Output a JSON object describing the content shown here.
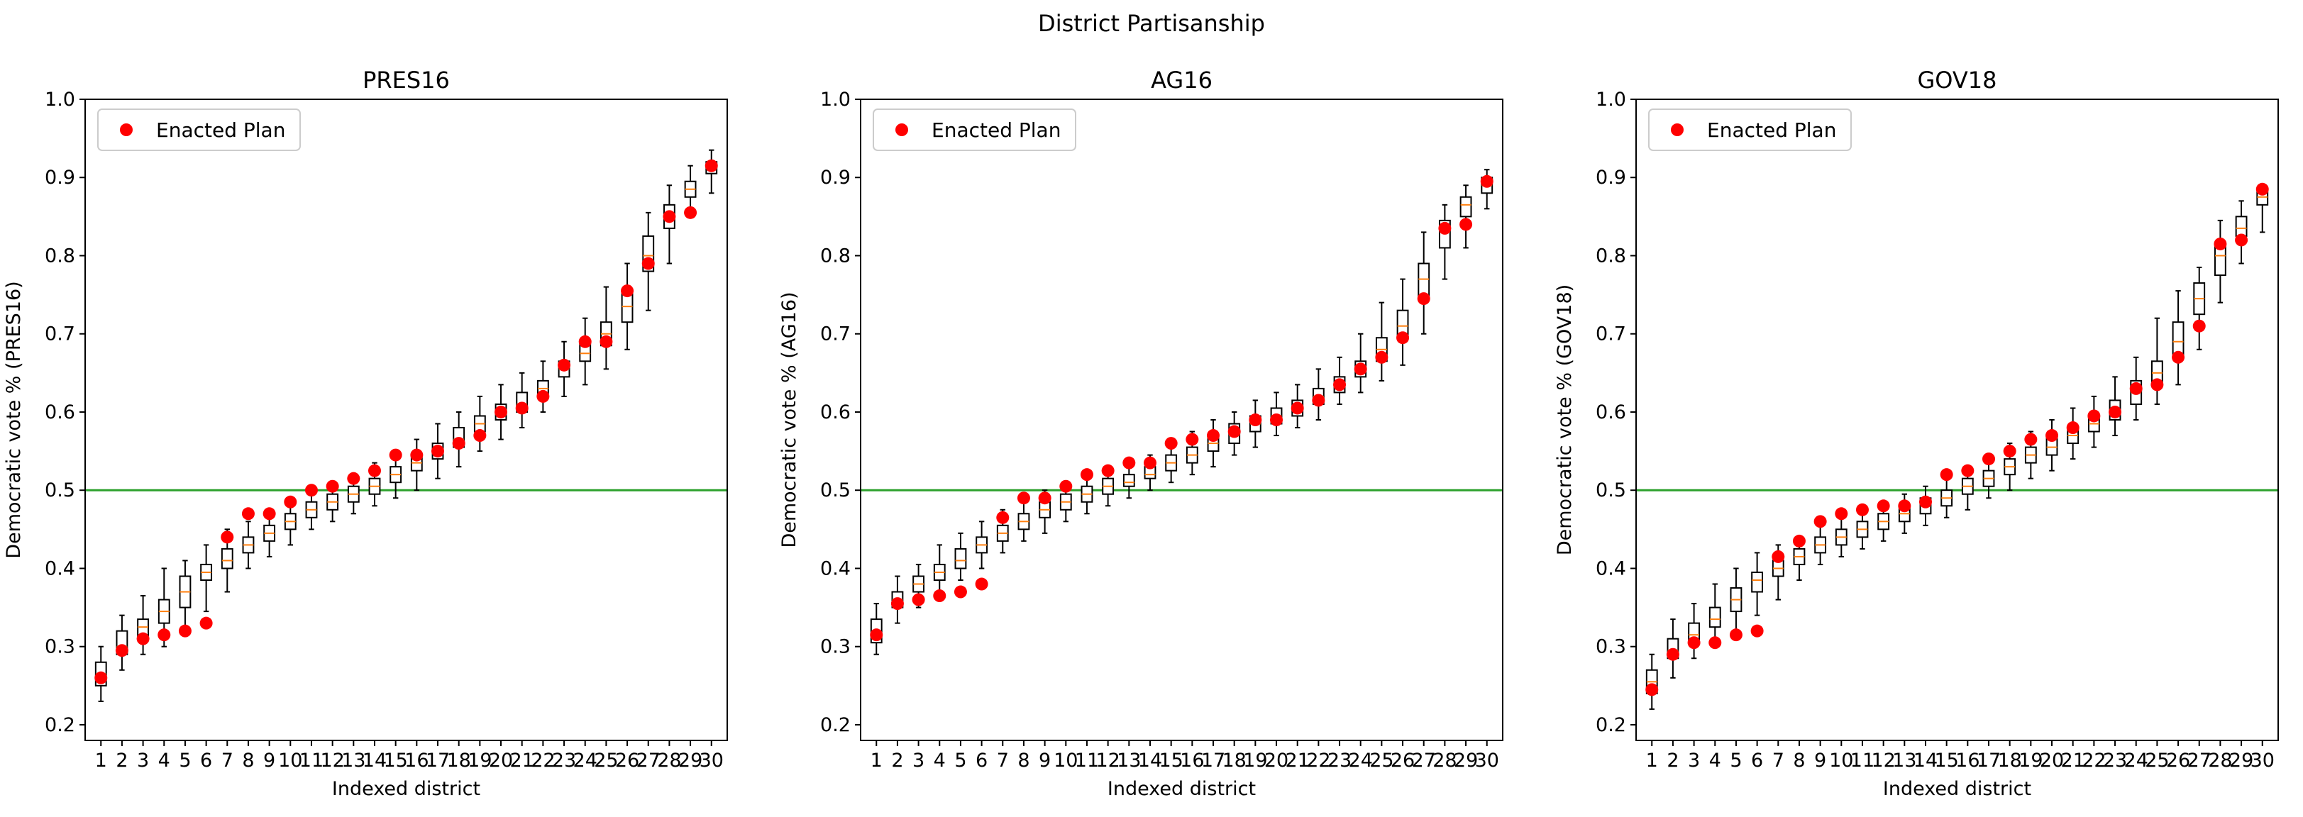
{
  "figure_title": "District Partisanship",
  "chart_data": [
    {
      "type": "box",
      "title": "PRES16",
      "xlabel": "Indexed district",
      "ylabel": "Democratic vote % (PRES16)",
      "ylim": [
        0.18,
        1.0
      ],
      "yticks": [
        "0.2",
        "0.3",
        "0.4",
        "0.5",
        "0.6",
        "0.7",
        "0.8",
        "0.9",
        "1.0"
      ],
      "categories": [
        "1",
        "2",
        "3",
        "4",
        "5",
        "6",
        "7",
        "8",
        "9",
        "10",
        "11",
        "12",
        "13",
        "14",
        "15",
        "16",
        "17",
        "18",
        "19",
        "20",
        "21",
        "22",
        "23",
        "24",
        "25",
        "26",
        "27",
        "28",
        "29",
        "30"
      ],
      "reference_line": 0.5,
      "legend": {
        "label": "Enacted Plan",
        "position": "upper-left"
      },
      "boxes": [
        {
          "min": 0.23,
          "q1": 0.25,
          "median": 0.265,
          "q3": 0.28,
          "max": 0.3
        },
        {
          "min": 0.27,
          "q1": 0.29,
          "median": 0.3,
          "q3": 0.32,
          "max": 0.34
        },
        {
          "min": 0.29,
          "q1": 0.31,
          "median": 0.325,
          "q3": 0.335,
          "max": 0.365
        },
        {
          "min": 0.3,
          "q1": 0.33,
          "median": 0.345,
          "q3": 0.36,
          "max": 0.4
        },
        {
          "min": 0.32,
          "q1": 0.35,
          "median": 0.37,
          "q3": 0.39,
          "max": 0.41
        },
        {
          "min": 0.345,
          "q1": 0.385,
          "median": 0.395,
          "q3": 0.405,
          "max": 0.43
        },
        {
          "min": 0.37,
          "q1": 0.4,
          "median": 0.41,
          "q3": 0.425,
          "max": 0.45
        },
        {
          "min": 0.4,
          "q1": 0.42,
          "median": 0.43,
          "q3": 0.44,
          "max": 0.46
        },
        {
          "min": 0.415,
          "q1": 0.435,
          "median": 0.445,
          "q3": 0.455,
          "max": 0.475
        },
        {
          "min": 0.43,
          "q1": 0.45,
          "median": 0.46,
          "q3": 0.47,
          "max": 0.49
        },
        {
          "min": 0.45,
          "q1": 0.465,
          "median": 0.475,
          "q3": 0.485,
          "max": 0.5
        },
        {
          "min": 0.46,
          "q1": 0.475,
          "median": 0.485,
          "q3": 0.495,
          "max": 0.51
        },
        {
          "min": 0.47,
          "q1": 0.485,
          "median": 0.495,
          "q3": 0.505,
          "max": 0.52
        },
        {
          "min": 0.48,
          "q1": 0.495,
          "median": 0.505,
          "q3": 0.515,
          "max": 0.535
        },
        {
          "min": 0.49,
          "q1": 0.51,
          "median": 0.52,
          "q3": 0.53,
          "max": 0.55
        },
        {
          "min": 0.5,
          "q1": 0.525,
          "median": 0.535,
          "q3": 0.545,
          "max": 0.565
        },
        {
          "min": 0.515,
          "q1": 0.54,
          "median": 0.55,
          "q3": 0.56,
          "max": 0.585
        },
        {
          "min": 0.53,
          "q1": 0.555,
          "median": 0.565,
          "q3": 0.58,
          "max": 0.6
        },
        {
          "min": 0.55,
          "q1": 0.575,
          "median": 0.585,
          "q3": 0.595,
          "max": 0.62
        },
        {
          "min": 0.565,
          "q1": 0.59,
          "median": 0.6,
          "q3": 0.61,
          "max": 0.635
        },
        {
          "min": 0.58,
          "q1": 0.6,
          "median": 0.61,
          "q3": 0.625,
          "max": 0.65
        },
        {
          "min": 0.6,
          "q1": 0.62,
          "median": 0.63,
          "q3": 0.64,
          "max": 0.665
        },
        {
          "min": 0.62,
          "q1": 0.645,
          "median": 0.655,
          "q3": 0.665,
          "max": 0.69
        },
        {
          "min": 0.635,
          "q1": 0.665,
          "median": 0.675,
          "q3": 0.69,
          "max": 0.72
        },
        {
          "min": 0.655,
          "q1": 0.685,
          "median": 0.7,
          "q3": 0.715,
          "max": 0.76
        },
        {
          "min": 0.68,
          "q1": 0.715,
          "median": 0.735,
          "q3": 0.755,
          "max": 0.79
        },
        {
          "min": 0.73,
          "q1": 0.78,
          "median": 0.8,
          "q3": 0.825,
          "max": 0.855
        },
        {
          "min": 0.79,
          "q1": 0.835,
          "median": 0.85,
          "q3": 0.865,
          "max": 0.89
        },
        {
          "min": 0.85,
          "q1": 0.875,
          "median": 0.885,
          "q3": 0.895,
          "max": 0.915
        },
        {
          "min": 0.88,
          "q1": 0.905,
          "median": 0.915,
          "q3": 0.92,
          "max": 0.935
        }
      ],
      "enacted": [
        0.26,
        0.295,
        0.31,
        0.315,
        0.32,
        0.33,
        0.44,
        0.47,
        0.47,
        0.485,
        0.5,
        0.505,
        0.515,
        0.525,
        0.545,
        0.545,
        0.55,
        0.56,
        0.57,
        0.6,
        0.605,
        0.62,
        0.66,
        0.69,
        0.69,
        0.755,
        0.79,
        0.85,
        0.855,
        0.915
      ]
    },
    {
      "type": "box",
      "title": "AG16",
      "xlabel": "Indexed district",
      "ylabel": "Democratic vote % (AG16)",
      "ylim": [
        0.18,
        1.0
      ],
      "yticks": [
        "0.2",
        "0.3",
        "0.4",
        "0.5",
        "0.6",
        "0.7",
        "0.8",
        "0.9",
        "1.0"
      ],
      "categories": [
        "1",
        "2",
        "3",
        "4",
        "5",
        "6",
        "7",
        "8",
        "9",
        "10",
        "11",
        "12",
        "13",
        "14",
        "15",
        "16",
        "17",
        "18",
        "19",
        "20",
        "21",
        "22",
        "23",
        "24",
        "25",
        "26",
        "27",
        "28",
        "29",
        "30"
      ],
      "reference_line": 0.5,
      "legend": {
        "label": "Enacted Plan",
        "position": "upper-left"
      },
      "boxes": [
        {
          "min": 0.29,
          "q1": 0.305,
          "median": 0.315,
          "q3": 0.335,
          "max": 0.355
        },
        {
          "min": 0.33,
          "q1": 0.35,
          "median": 0.36,
          "q3": 0.37,
          "max": 0.39
        },
        {
          "min": 0.35,
          "q1": 0.37,
          "median": 0.38,
          "q3": 0.39,
          "max": 0.405
        },
        {
          "min": 0.37,
          "q1": 0.385,
          "median": 0.395,
          "q3": 0.405,
          "max": 0.43
        },
        {
          "min": 0.385,
          "q1": 0.4,
          "median": 0.41,
          "q3": 0.425,
          "max": 0.445
        },
        {
          "min": 0.4,
          "q1": 0.42,
          "median": 0.43,
          "q3": 0.44,
          "max": 0.46
        },
        {
          "min": 0.42,
          "q1": 0.435,
          "median": 0.445,
          "q3": 0.455,
          "max": 0.475
        },
        {
          "min": 0.435,
          "q1": 0.45,
          "median": 0.46,
          "q3": 0.47,
          "max": 0.49
        },
        {
          "min": 0.445,
          "q1": 0.465,
          "median": 0.475,
          "q3": 0.485,
          "max": 0.5
        },
        {
          "min": 0.46,
          "q1": 0.475,
          "median": 0.485,
          "q3": 0.495,
          "max": 0.51
        },
        {
          "min": 0.47,
          "q1": 0.485,
          "median": 0.495,
          "q3": 0.505,
          "max": 0.52
        },
        {
          "min": 0.48,
          "q1": 0.495,
          "median": 0.505,
          "q3": 0.515,
          "max": 0.53
        },
        {
          "min": 0.49,
          "q1": 0.505,
          "median": 0.51,
          "q3": 0.52,
          "max": 0.535
        },
        {
          "min": 0.5,
          "q1": 0.515,
          "median": 0.52,
          "q3": 0.53,
          "max": 0.545
        },
        {
          "min": 0.51,
          "q1": 0.525,
          "median": 0.535,
          "q3": 0.545,
          "max": 0.56
        },
        {
          "min": 0.52,
          "q1": 0.535,
          "median": 0.545,
          "q3": 0.555,
          "max": 0.575
        },
        {
          "min": 0.53,
          "q1": 0.55,
          "median": 0.56,
          "q3": 0.57,
          "max": 0.59
        },
        {
          "min": 0.545,
          "q1": 0.56,
          "median": 0.57,
          "q3": 0.585,
          "max": 0.6
        },
        {
          "min": 0.555,
          "q1": 0.575,
          "median": 0.585,
          "q3": 0.595,
          "max": 0.615
        },
        {
          "min": 0.57,
          "q1": 0.585,
          "median": 0.595,
          "q3": 0.605,
          "max": 0.625
        },
        {
          "min": 0.58,
          "q1": 0.595,
          "median": 0.605,
          "q3": 0.615,
          "max": 0.635
        },
        {
          "min": 0.59,
          "q1": 0.61,
          "median": 0.62,
          "q3": 0.63,
          "max": 0.655
        },
        {
          "min": 0.61,
          "q1": 0.625,
          "median": 0.635,
          "q3": 0.645,
          "max": 0.67
        },
        {
          "min": 0.625,
          "q1": 0.645,
          "median": 0.655,
          "q3": 0.665,
          "max": 0.7
        },
        {
          "min": 0.64,
          "q1": 0.665,
          "median": 0.68,
          "q3": 0.695,
          "max": 0.74
        },
        {
          "min": 0.66,
          "q1": 0.695,
          "median": 0.71,
          "q3": 0.73,
          "max": 0.77
        },
        {
          "min": 0.7,
          "q1": 0.745,
          "median": 0.77,
          "q3": 0.79,
          "max": 0.83
        },
        {
          "min": 0.77,
          "q1": 0.81,
          "median": 0.83,
          "q3": 0.845,
          "max": 0.865
        },
        {
          "min": 0.81,
          "q1": 0.85,
          "median": 0.865,
          "q3": 0.875,
          "max": 0.89
        },
        {
          "min": 0.86,
          "q1": 0.88,
          "median": 0.89,
          "q3": 0.9,
          "max": 0.91
        }
      ],
      "enacted": [
        0.315,
        0.355,
        0.36,
        0.365,
        0.37,
        0.38,
        0.465,
        0.49,
        0.49,
        0.505,
        0.52,
        0.525,
        0.535,
        0.535,
        0.56,
        0.565,
        0.57,
        0.575,
        0.59,
        0.59,
        0.605,
        0.615,
        0.635,
        0.655,
        0.67,
        0.695,
        0.745,
        0.835,
        0.84,
        0.895
      ]
    },
    {
      "type": "box",
      "title": "GOV18",
      "xlabel": "Indexed district",
      "ylabel": "Democratic vote % (GOV18)",
      "ylim": [
        0.18,
        1.0
      ],
      "yticks": [
        "0.2",
        "0.3",
        "0.4",
        "0.5",
        "0.6",
        "0.7",
        "0.8",
        "0.9",
        "1.0"
      ],
      "categories": [
        "1",
        "2",
        "3",
        "4",
        "5",
        "6",
        "7",
        "8",
        "9",
        "10",
        "11",
        "12",
        "13",
        "14",
        "15",
        "16",
        "17",
        "18",
        "19",
        "20",
        "21",
        "22",
        "23",
        "24",
        "25",
        "26",
        "27",
        "28",
        "29",
        "30"
      ],
      "reference_line": 0.5,
      "legend": {
        "label": "Enacted Plan",
        "position": "upper-left"
      },
      "boxes": [
        {
          "min": 0.22,
          "q1": 0.24,
          "median": 0.255,
          "q3": 0.27,
          "max": 0.29
        },
        {
          "min": 0.26,
          "q1": 0.285,
          "median": 0.295,
          "q3": 0.31,
          "max": 0.335
        },
        {
          "min": 0.285,
          "q1": 0.305,
          "median": 0.315,
          "q3": 0.33,
          "max": 0.355
        },
        {
          "min": 0.3,
          "q1": 0.325,
          "median": 0.335,
          "q3": 0.35,
          "max": 0.38
        },
        {
          "min": 0.32,
          "q1": 0.345,
          "median": 0.36,
          "q3": 0.375,
          "max": 0.4
        },
        {
          "min": 0.34,
          "q1": 0.37,
          "median": 0.385,
          "q3": 0.395,
          "max": 0.42
        },
        {
          "min": 0.36,
          "q1": 0.39,
          "median": 0.4,
          "q3": 0.41,
          "max": 0.43
        },
        {
          "min": 0.385,
          "q1": 0.405,
          "median": 0.415,
          "q3": 0.425,
          "max": 0.44
        },
        {
          "min": 0.405,
          "q1": 0.42,
          "median": 0.43,
          "q3": 0.44,
          "max": 0.455
        },
        {
          "min": 0.415,
          "q1": 0.43,
          "median": 0.44,
          "q3": 0.45,
          "max": 0.47
        },
        {
          "min": 0.425,
          "q1": 0.44,
          "median": 0.45,
          "q3": 0.46,
          "max": 0.475
        },
        {
          "min": 0.435,
          "q1": 0.45,
          "median": 0.46,
          "q3": 0.47,
          "max": 0.485
        },
        {
          "min": 0.445,
          "q1": 0.46,
          "median": 0.47,
          "q3": 0.48,
          "max": 0.495
        },
        {
          "min": 0.455,
          "q1": 0.47,
          "median": 0.48,
          "q3": 0.49,
          "max": 0.505
        },
        {
          "min": 0.465,
          "q1": 0.48,
          "median": 0.49,
          "q3": 0.5,
          "max": 0.515
        },
        {
          "min": 0.475,
          "q1": 0.495,
          "median": 0.505,
          "q3": 0.515,
          "max": 0.53
        },
        {
          "min": 0.49,
          "q1": 0.505,
          "median": 0.515,
          "q3": 0.525,
          "max": 0.545
        },
        {
          "min": 0.5,
          "q1": 0.52,
          "median": 0.53,
          "q3": 0.54,
          "max": 0.56
        },
        {
          "min": 0.515,
          "q1": 0.535,
          "median": 0.545,
          "q3": 0.555,
          "max": 0.575
        },
        {
          "min": 0.525,
          "q1": 0.545,
          "median": 0.555,
          "q3": 0.57,
          "max": 0.59
        },
        {
          "min": 0.54,
          "q1": 0.56,
          "median": 0.57,
          "q3": 0.58,
          "max": 0.605
        },
        {
          "min": 0.555,
          "q1": 0.575,
          "median": 0.585,
          "q3": 0.595,
          "max": 0.62
        },
        {
          "min": 0.57,
          "q1": 0.59,
          "median": 0.6,
          "q3": 0.615,
          "max": 0.645
        },
        {
          "min": 0.59,
          "q1": 0.61,
          "median": 0.625,
          "q3": 0.64,
          "max": 0.67
        },
        {
          "min": 0.61,
          "q1": 0.635,
          "median": 0.65,
          "q3": 0.665,
          "max": 0.72
        },
        {
          "min": 0.635,
          "q1": 0.67,
          "median": 0.69,
          "q3": 0.715,
          "max": 0.755
        },
        {
          "min": 0.68,
          "q1": 0.725,
          "median": 0.745,
          "q3": 0.765,
          "max": 0.785
        },
        {
          "min": 0.74,
          "q1": 0.775,
          "median": 0.8,
          "q3": 0.815,
          "max": 0.845
        },
        {
          "min": 0.79,
          "q1": 0.825,
          "median": 0.835,
          "q3": 0.85,
          "max": 0.87
        },
        {
          "min": 0.83,
          "q1": 0.865,
          "median": 0.875,
          "q3": 0.885,
          "max": 0.89
        }
      ],
      "enacted": [
        0.245,
        0.29,
        0.305,
        0.305,
        0.315,
        0.32,
        0.415,
        0.435,
        0.46,
        0.47,
        0.475,
        0.48,
        0.48,
        0.485,
        0.52,
        0.525,
        0.54,
        0.55,
        0.565,
        0.57,
        0.58,
        0.595,
        0.6,
        0.63,
        0.635,
        0.67,
        0.71,
        0.815,
        0.82,
        0.885
      ]
    }
  ],
  "colors": {
    "enacted_marker": "#ff0000",
    "median_line": "#ff7f0e",
    "reference_line": "#2ca02c",
    "box_edge": "#000000"
  }
}
